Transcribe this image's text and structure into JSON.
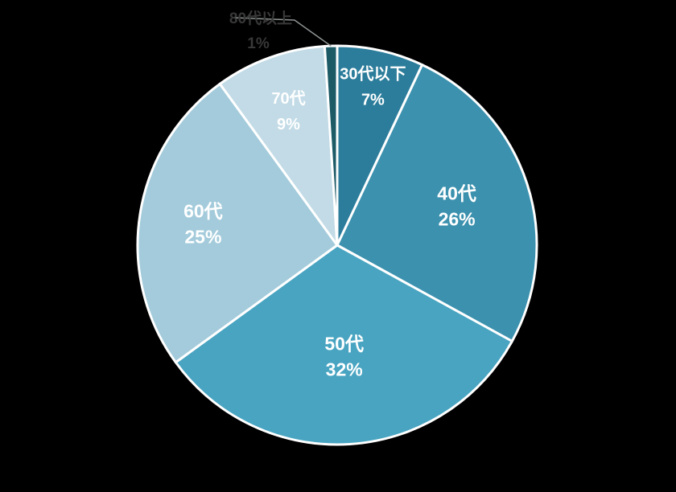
{
  "chart_data": {
    "type": "pie",
    "title": "",
    "legend": "none",
    "labels": [
      "30代以下",
      "40代",
      "50代",
      "60代",
      "70代",
      "80代以上"
    ],
    "values": [
      7,
      26,
      32,
      25,
      9,
      1
    ],
    "value_labels": [
      "7%",
      "26%",
      "32%",
      "25%",
      "9%",
      "1%"
    ],
    "colors": [
      "#2C7D9B",
      "#3B91AE",
      "#48A4C1",
      "#A3CBDB",
      "#C2DBE6",
      "#1C5A66"
    ],
    "start_angle_deg": 0,
    "direction": "clockwise",
    "background_color": "#000000",
    "slice_border_color": "#FFFFFF",
    "inside_label_color": "#FFFFFF",
    "outside_label_color": "#383838",
    "leader_line_color": "#8F9494"
  }
}
